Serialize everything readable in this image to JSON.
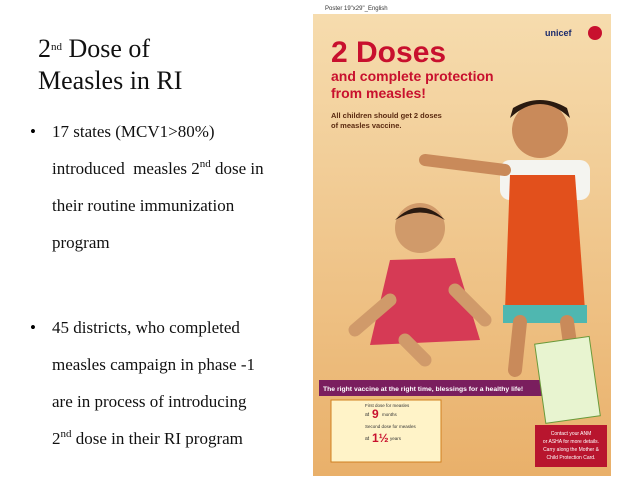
{
  "slide": {
    "title": {
      "number": "2",
      "suffix": "nd",
      "rest": " Dose of",
      "line2": "Measles in RI"
    },
    "bullets": [
      {
        "lines": [
          "17 states (MCV1>80%)",
          [
            "introduced  measles 2",
            "nd",
            " dose in"
          ],
          "their routine immunization",
          "program"
        ]
      },
      {
        "lines": [
          "45 districts, who completed",
          "measles campaign in phase -1",
          "are in process of introducing",
          [
            "2",
            "nd",
            " dose in their RI program"
          ]
        ]
      }
    ]
  },
  "poster": {
    "label": "Poster 19\"x29\"_English",
    "logo": "unicef",
    "headline": "2 Doses",
    "subheadline": [
      "and complete protection",
      "from measles!"
    ],
    "note": [
      "All children should get 2 doses",
      "of measles vaccine."
    ],
    "banner": "The right vaccine at the right time, blessings for a healthy life!",
    "first_dose": {
      "text": "First dose for measles",
      "at": "at",
      "age": "9",
      "unit": "months"
    },
    "second_dose": {
      "text": "Second dose for measles",
      "at": "at",
      "age": "1½",
      "unit": "years"
    },
    "contact": [
      "Contact your ANM",
      "or ASHA for more details.",
      "Carry along the Mother &",
      "Child Protection Card."
    ]
  }
}
